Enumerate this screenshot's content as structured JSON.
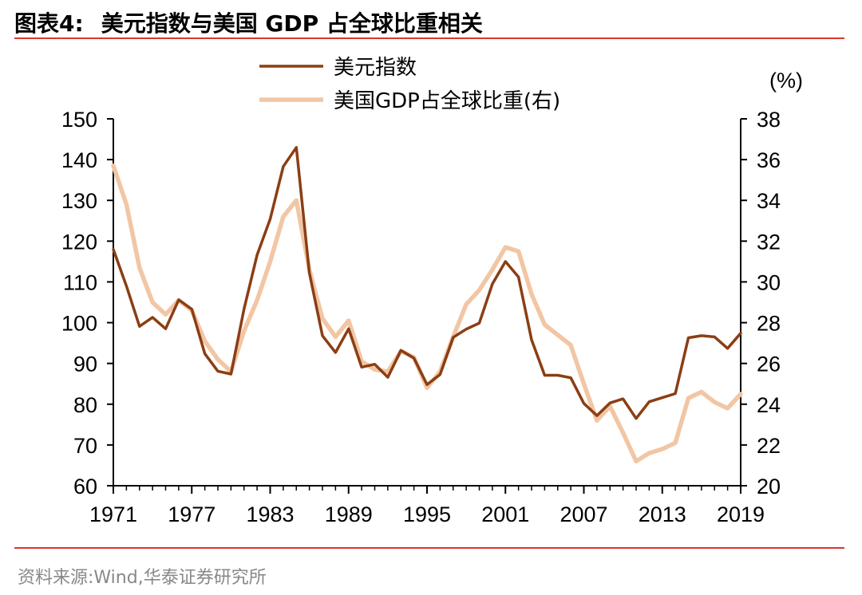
{
  "header": {
    "figure_label": "图表4:",
    "title": "美元指数与美国 GDP 占全球比重相关"
  },
  "footer": {
    "source": "资料来源:Wind,华泰证券研究所"
  },
  "colors": {
    "accent_rule": "#d9382e",
    "series_dollar": "#8b3e14",
    "series_gdp": "#f2c6a4"
  },
  "chart_data": {
    "type": "line",
    "title": "美元指数与美国 GDP 占全球比重相关",
    "x": [
      1971,
      1972,
      1973,
      1974,
      1975,
      1976,
      1977,
      1978,
      1979,
      1980,
      1981,
      1982,
      1983,
      1984,
      1985,
      1986,
      1987,
      1988,
      1989,
      1990,
      1991,
      1992,
      1993,
      1994,
      1995,
      1996,
      1997,
      1998,
      1999,
      2000,
      2001,
      2002,
      2003,
      2004,
      2005,
      2006,
      2007,
      2008,
      2009,
      2010,
      2011,
      2012,
      2013,
      2014,
      2015,
      2016,
      2017,
      2018,
      2019
    ],
    "x_ticks": [
      "1971",
      "1977",
      "1983",
      "1989",
      "1995",
      "2001",
      "2007",
      "2013",
      "2019"
    ],
    "xlim": [
      1971,
      2019
    ],
    "y_left": {
      "label": "",
      "ylim": [
        60,
        150
      ],
      "ticks": [
        "60",
        "70",
        "80",
        "90",
        "100",
        "110",
        "120",
        "130",
        "140",
        "150"
      ]
    },
    "y_right": {
      "label": "(%)",
      "ylim": [
        20,
        38
      ],
      "ticks": [
        "20",
        "22",
        "24",
        "26",
        "28",
        "30",
        "32",
        "34",
        "36",
        "38"
      ]
    },
    "legend_position": "top-center",
    "series": [
      {
        "name": "美元指数",
        "axis": "left",
        "values": [
          118,
          109,
          99.1,
          101.3,
          98.5,
          105.6,
          103.3,
          92.4,
          88.1,
          87.4,
          103.4,
          116.6,
          125.4,
          138.3,
          143,
          112.2,
          96.8,
          92.7,
          98.5,
          89.1,
          89.8,
          86.6,
          93.2,
          91.3,
          84.8,
          87.3,
          96.4,
          98.4,
          99.9,
          109.5,
          115,
          111.2,
          95.8,
          87.1,
          87.1,
          86.5,
          80.2,
          77.2,
          80.3,
          81.3,
          76.5,
          80.6,
          81.6,
          82.6,
          96.3,
          96.8,
          96.5,
          93.7,
          97.4
        ]
      },
      {
        "name": "美国GDP占全球比重(右)",
        "axis": "right",
        "values": [
          35.7,
          33.8,
          30.7,
          29,
          28.4,
          29.1,
          28.6,
          27.1,
          26.2,
          25.6,
          27.6,
          29.1,
          31,
          33.2,
          34,
          30.6,
          28.2,
          27.3,
          28.1,
          26.1,
          25.7,
          25.6,
          26.6,
          26.3,
          24.8,
          25.6,
          27.3,
          28.9,
          29.6,
          30.6,
          31.7,
          31.5,
          29.4,
          27.9,
          27.4,
          26.9,
          25,
          23.2,
          23.9,
          22.6,
          21.2,
          21.6,
          21.8,
          22.1,
          24.3,
          24.6,
          24.1,
          23.8,
          24.5
        ]
      }
    ]
  }
}
